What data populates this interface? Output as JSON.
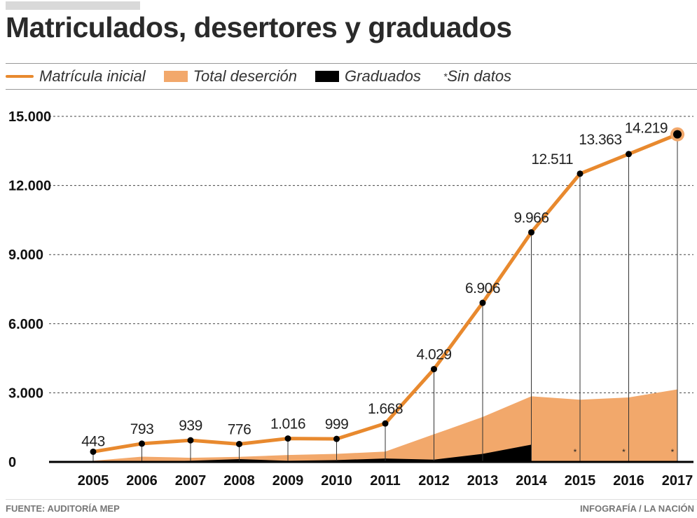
{
  "title": "Matriculados, desertores y graduados",
  "legend": {
    "matricula": "Matrícula inicial",
    "desercion": "Total deserción",
    "graduados": "Graduados",
    "sin_datos_mark": "*",
    "sin_datos": "Sin datos"
  },
  "footer": {
    "source": "FUENTE: AUDITORÍA MEP",
    "credit": "INFOGRAFÍA / LA NACIÓN"
  },
  "colors": {
    "line": "#e8892e",
    "area": "#f2a86b",
    "grad": "#000000"
  },
  "chart_data": {
    "type": "line",
    "title": "Matriculados, desertores y graduados",
    "categories": [
      "2005",
      "2006",
      "2007",
      "2008",
      "2009",
      "2010",
      "2011",
      "2012",
      "2013",
      "2014",
      "2015",
      "2016",
      "2017"
    ],
    "ylim": [
      0,
      15000
    ],
    "yticks": [
      0,
      3000,
      6000,
      9000,
      12000,
      15000
    ],
    "ytick_labels": [
      "0",
      "3.000",
      "6.000",
      "9.000",
      "12.000",
      "15.000"
    ],
    "grid": true,
    "legend_position": "top",
    "series": [
      {
        "name": "Matrícula inicial",
        "type": "line",
        "values": [
          443,
          793,
          939,
          776,
          1016,
          999,
          1668,
          4029,
          6906,
          9966,
          12511,
          13363,
          14219
        ],
        "labels": [
          "443",
          "793",
          "939",
          "776",
          "1.016",
          "999",
          "1.668",
          "4.029",
          "6.906",
          "9.966",
          "12.511",
          "13.363",
          "14.219"
        ]
      },
      {
        "name": "Total deserción",
        "type": "area",
        "values": [
          50,
          230,
          180,
          220,
          300,
          350,
          450,
          1200,
          1950,
          2850,
          2700,
          2800,
          3150
        ]
      },
      {
        "name": "Graduados",
        "type": "area",
        "values": [
          0,
          20,
          50,
          120,
          50,
          80,
          150,
          100,
          350,
          750,
          null,
          null,
          null
        ]
      }
    ]
  }
}
